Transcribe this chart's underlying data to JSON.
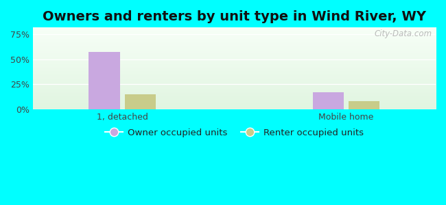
{
  "title": "Owners and renters by unit type in Wind River, WY",
  "categories": [
    "1, detached",
    "Mobile home"
  ],
  "owner_values": [
    57,
    17
  ],
  "renter_values": [
    15,
    8
  ],
  "owner_color": "#c9a8e0",
  "renter_color": "#c8cc8a",
  "yticks": [
    0,
    25,
    50,
    75
  ],
  "ytick_labels": [
    "0%",
    "25%",
    "50%",
    "75%"
  ],
  "ylim": [
    0,
    82
  ],
  "background_color": "#00ffff",
  "watermark": "City-Data.com",
  "legend_owner": "Owner occupied units",
  "legend_renter": "Renter occupied units",
  "title_fontsize": 14,
  "bar_width": 0.28,
  "x_positions": [
    1.0,
    3.0
  ],
  "xlim": [
    0.2,
    3.8
  ]
}
